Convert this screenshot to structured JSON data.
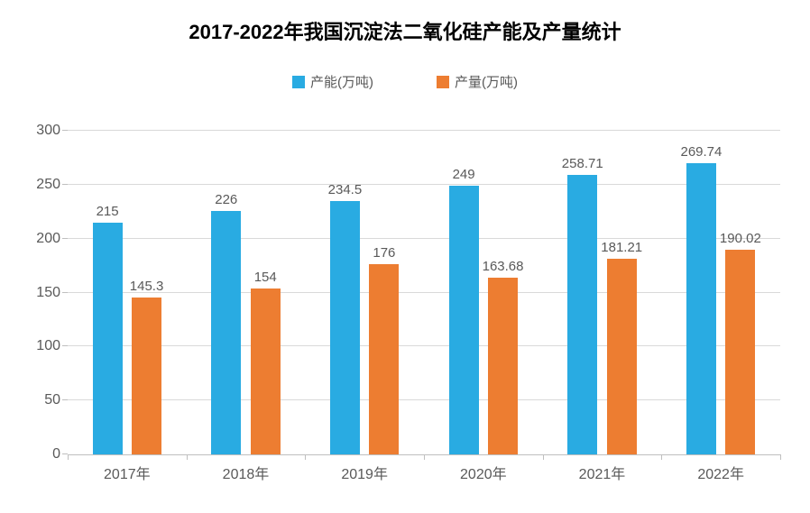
{
  "chart": {
    "type": "bar-grouped",
    "title": "2017-2022年我国沉淀法二氧化硅产能及产量统计",
    "title_fontsize": 22,
    "title_fontweight": "bold",
    "title_color": "#000000",
    "background_color": "#ffffff",
    "grid_color": "#d9d9d9",
    "axis_color": "#bfbfbf",
    "tick_label_color": "#595959",
    "tick_label_fontsize": 16,
    "legend_fontsize": 15,
    "bar_label_fontsize": 15,
    "ylim": [
      0,
      300
    ],
    "ytick_step": 50,
    "yticks": [
      0,
      50,
      100,
      150,
      200,
      250,
      300
    ],
    "categories": [
      "2017年",
      "2018年",
      "2019年",
      "2020年",
      "2021年",
      "2022年"
    ],
    "series": [
      {
        "name": "产能(万吨)",
        "color": "#29abe2",
        "values": [
          215,
          226,
          234.5,
          249,
          258.71,
          269.74
        ],
        "labels": [
          "215",
          "226",
          "234.5",
          "249",
          "258.71",
          "269.74"
        ]
      },
      {
        "name": "产量(万吨)",
        "color": "#ed7d31",
        "values": [
          145.3,
          154,
          176,
          163.68,
          181.21,
          190.02
        ],
        "labels": [
          "145.3",
          "154",
          "176",
          "163.68",
          "181.21",
          "190.02"
        ]
      }
    ],
    "bar_width_ratio": 0.25,
    "bar_gap_ratio": 0.08
  }
}
